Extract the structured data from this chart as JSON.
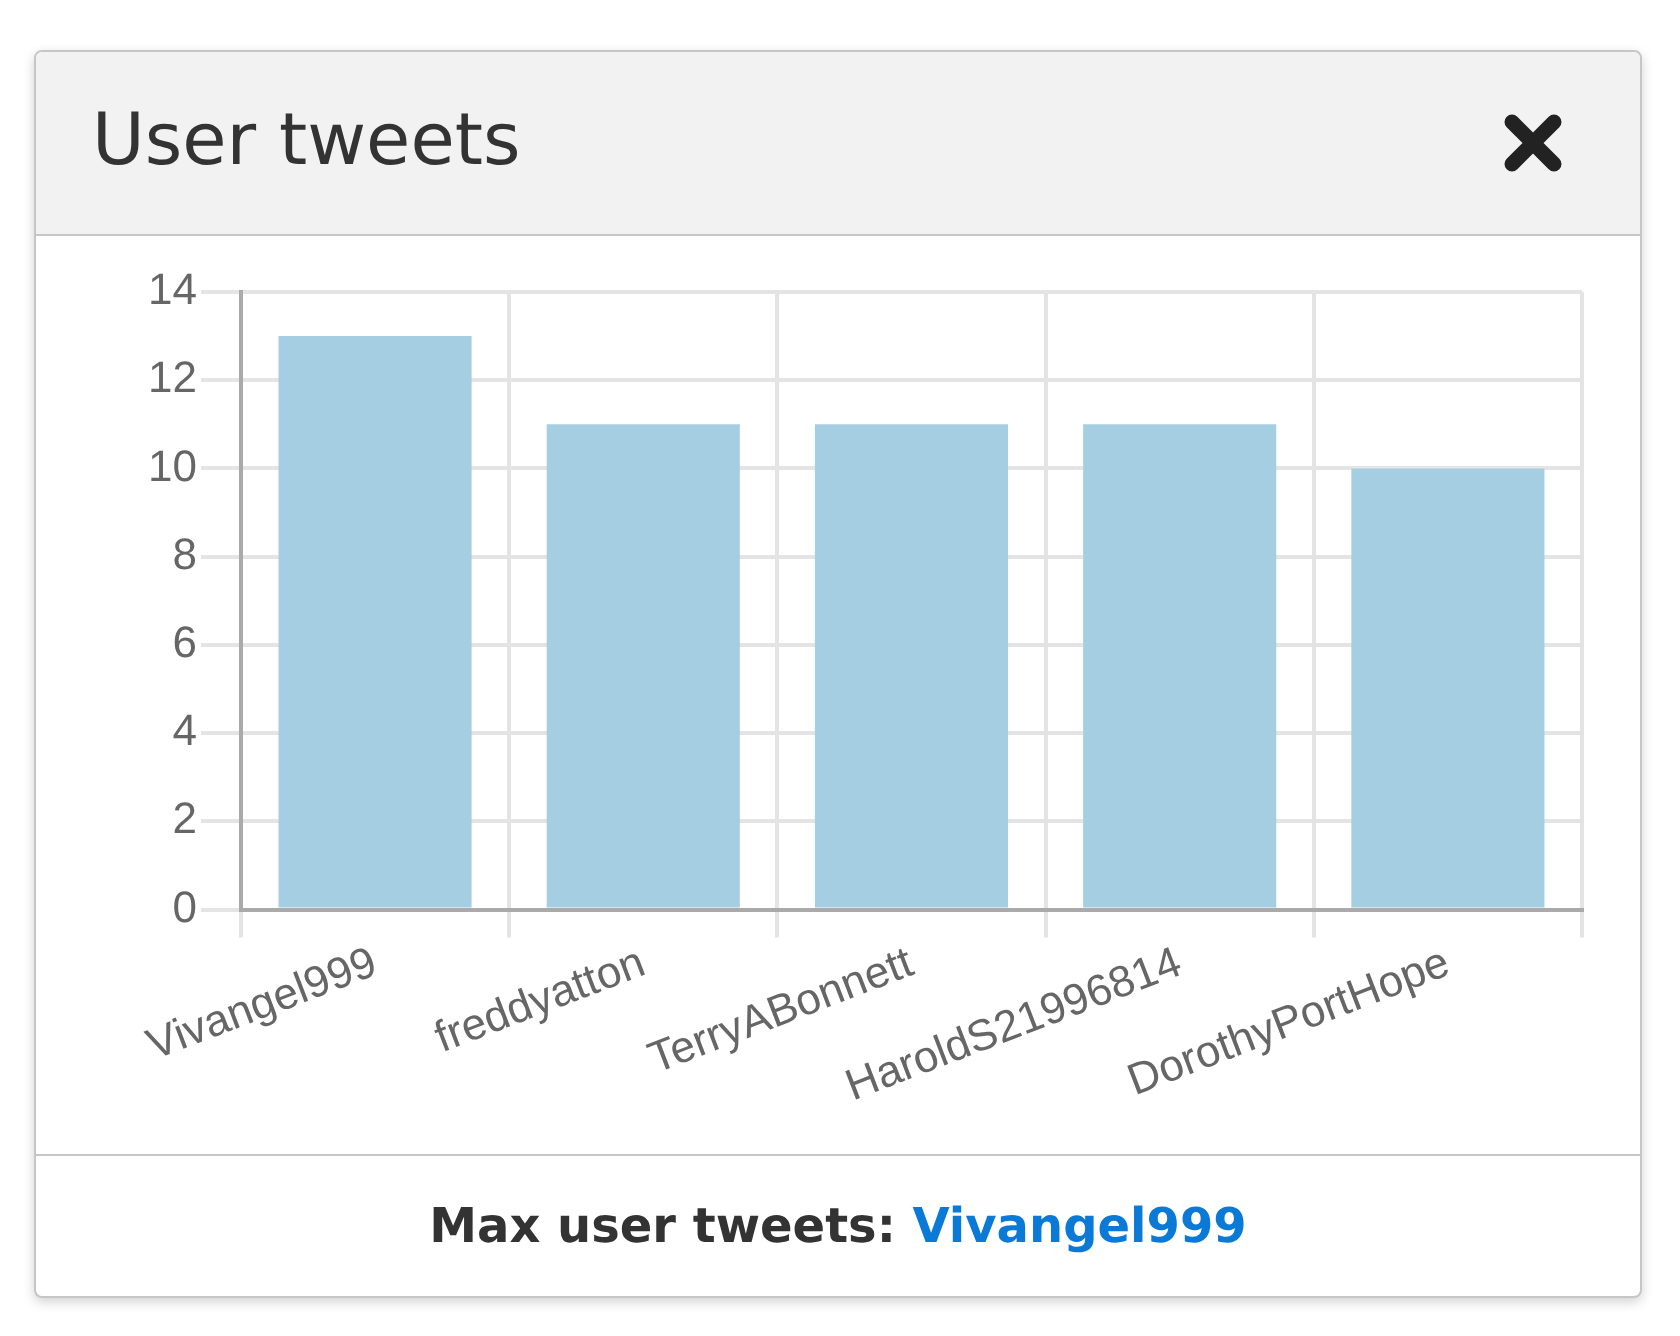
{
  "chart_data": {
    "type": "bar",
    "title": "User tweets",
    "categories": [
      "Vivangel999",
      "freddyatton",
      "TerryABonnett",
      "HaroldS21996814",
      "DorothyPortHope"
    ],
    "values": [
      13,
      11,
      11,
      11,
      10
    ],
    "color": "#a6cee3",
    "ylim": [
      0,
      14
    ],
    "yticks": [
      0,
      2,
      4,
      6,
      8,
      10,
      12,
      14
    ],
    "grid": true,
    "annotations": [
      "Max user tweets:",
      "Vivangel999"
    ]
  }
}
